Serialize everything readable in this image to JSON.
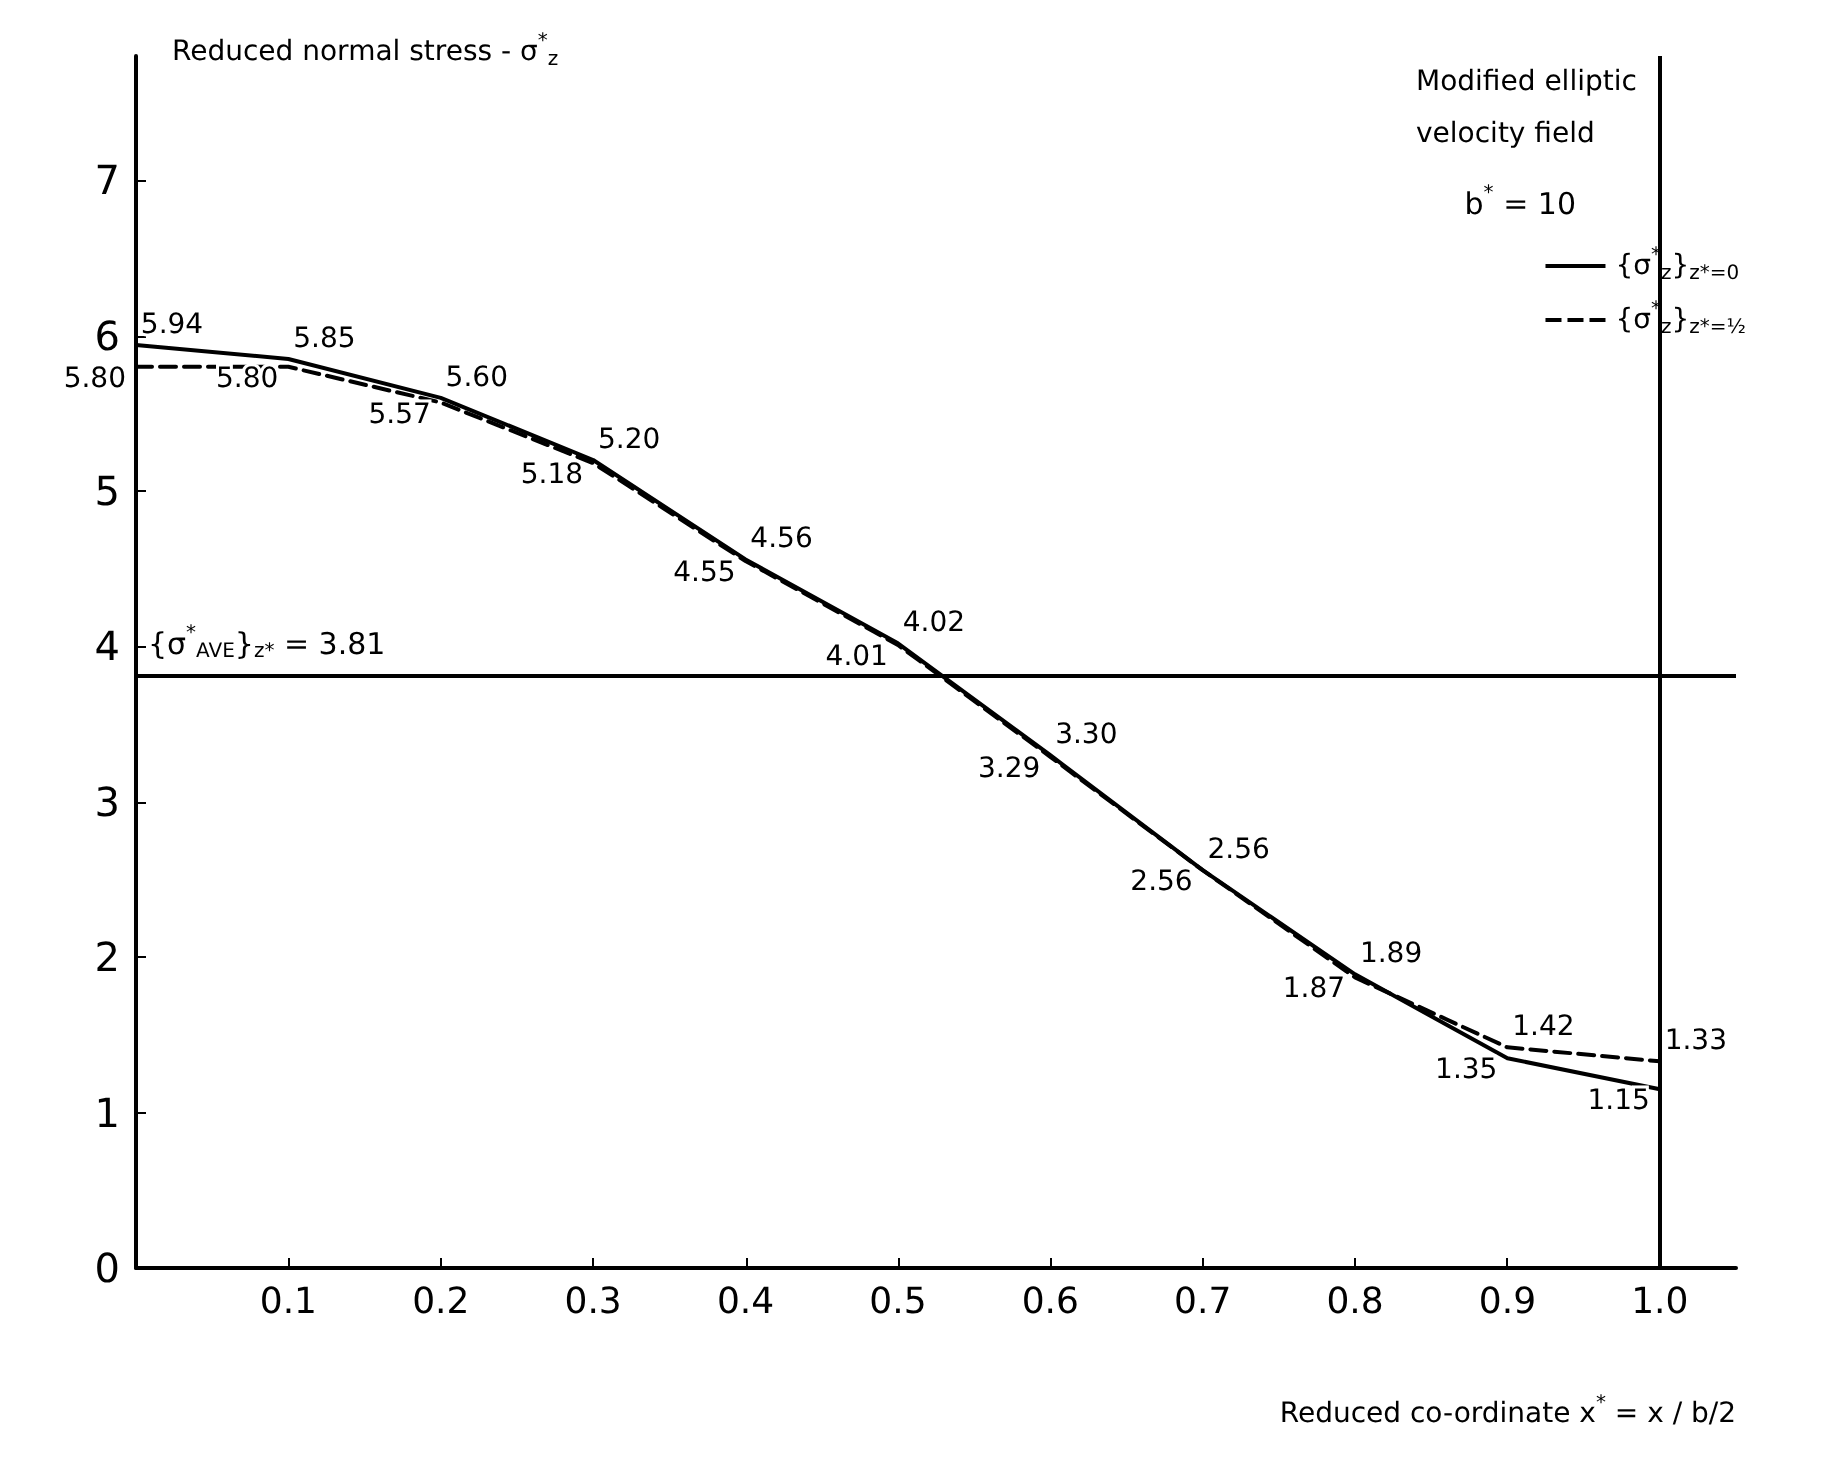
{
  "chart_data": {
    "type": "line",
    "ylabel": "Reduced normal stress - σ$^{*}$$_{z}$",
    "xlabel": "Reduced co-ordinate x$^{*}$ = x / b/2",
    "legend_title": "Modified elliptic velocity field",
    "annotations": [
      "b$^{*}$ = 10"
    ],
    "x": [
      0,
      0.1,
      0.2,
      0.3,
      0.4,
      0.5,
      0.6,
      0.7,
      0.8,
      0.9,
      1.0
    ],
    "series": [
      {
        "name": "{σ$^{*}$$_{z}$}$_{z*=0}$",
        "color": "#000000",
        "line_style": "solid",
        "values": [
          5.94,
          5.85,
          5.6,
          5.2,
          4.56,
          4.02,
          3.3,
          2.56,
          1.89,
          1.35,
          1.15
        ],
        "value_labels": [
          "5.94",
          "5.85",
          "5.60",
          "5.20",
          "4.56",
          "4.02",
          "3.30",
          "2.56",
          "1.89",
          "1.35",
          "1.15"
        ]
      },
      {
        "name": "{σ$^{*}$$_{z}$}$_{z*=½}$",
        "color": "#000000",
        "line_style": "dashed",
        "values": [
          5.8,
          5.8,
          5.57,
          5.18,
          4.55,
          4.01,
          3.29,
          2.56,
          1.87,
          1.42,
          1.33
        ],
        "value_labels": [
          "5.80",
          "5.80",
          "5.57",
          "5.18",
          "4.55",
          "4.01",
          "3.29",
          "2.56",
          "1.87",
          "1.42",
          "1.33"
        ]
      }
    ],
    "xlim": [
      0,
      1.05
    ],
    "xticks": [
      {
        "value": 0.1,
        "label": "0.1"
      },
      {
        "value": 0.2,
        "label": "0.2"
      },
      {
        "value": 0.3,
        "label": "0.3"
      },
      {
        "value": 0.4,
        "label": "0.4"
      },
      {
        "value": 0.5,
        "label": "0.5"
      },
      {
        "value": 0.6,
        "label": "0.6"
      },
      {
        "value": 0.7,
        "label": "0.7"
      },
      {
        "value": 0.8,
        "label": "0.8"
      },
      {
        "value": 0.9,
        "label": "0.9"
      },
      {
        "value": 1.0,
        "label": "1.0"
      }
    ],
    "ylim": [
      0,
      7.8
    ],
    "yticks": [
      0,
      1,
      2,
      3,
      4,
      5,
      6,
      7
    ],
    "ref_lines": [
      {
        "axis": "y",
        "value": 3.81,
        "label": "{σ$^{*}$$_{AVE}$}$_{z*}$ = 3.81"
      },
      {
        "axis": "x",
        "value": 1.0,
        "label": null
      }
    ],
    "grid": false,
    "legend": "top right",
    "marker": "none"
  }
}
